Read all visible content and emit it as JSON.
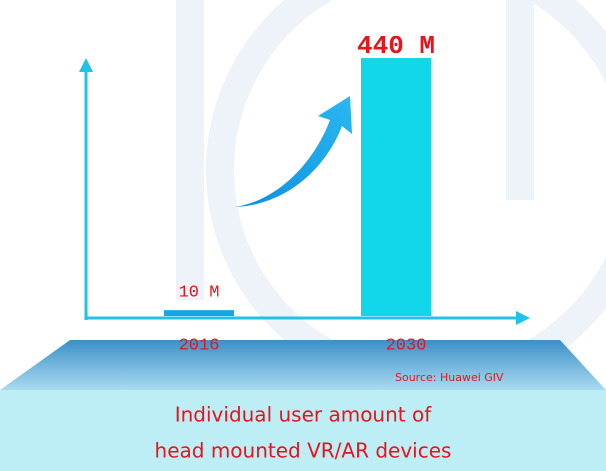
{
  "chart_data": {
    "type": "bar",
    "categories": [
      "2016",
      "2030"
    ],
    "values": [
      10,
      440
    ],
    "value_labels": [
      "10 M",
      "440 M"
    ],
    "colors": [
      "#1aa3e6",
      "#12d6ea"
    ],
    "axis_color": "#1fc3ea",
    "label_color": "#e8131b",
    "source": "Source: Huawei GIV",
    "caption_lines": [
      "Individual user amount of",
      "head mounted VR/AR devices"
    ]
  }
}
